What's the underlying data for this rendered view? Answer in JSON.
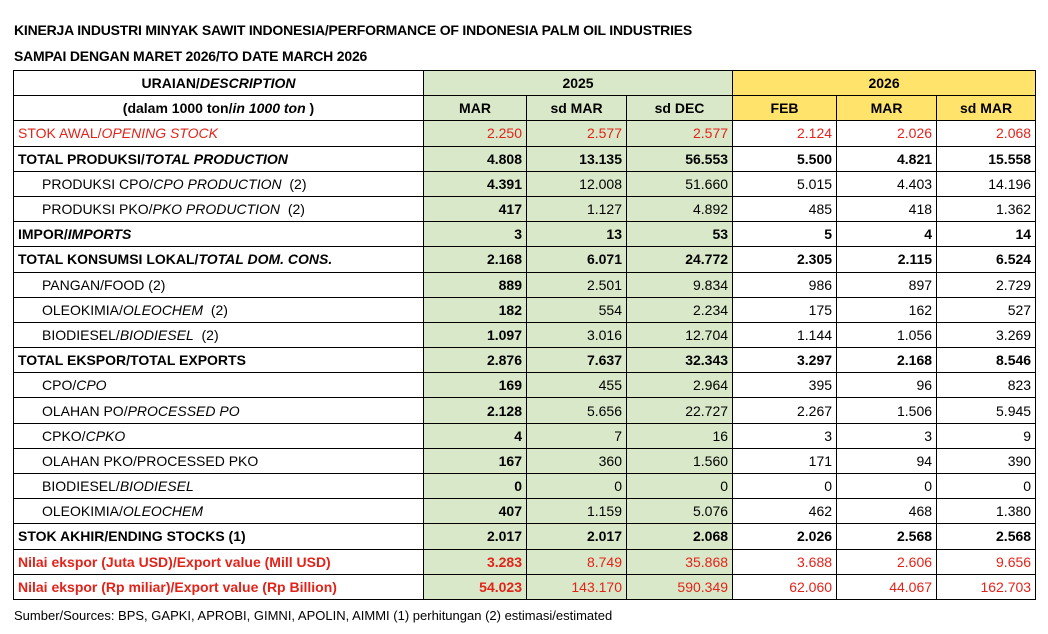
{
  "title_line1": "KINERJA INDUSTRI MINYAK SAWIT INDONESIA/PERFORMANCE OF INDONESIA PALM OIL INDUSTRIES",
  "title_line2": "SAMPAI DENGAN MARET 2026/TO DATE MARCH 2026",
  "header": {
    "desc_line1_main": "URAIAN/",
    "desc_line1_ital": "DESCRIPTION",
    "desc_line2_main": "(dalam 1000 ton/",
    "desc_line2_ital": "in 1000 ton",
    "desc_line2_end": " )",
    "year1": "2025",
    "year2": "2026",
    "cols": [
      "MAR",
      "sd MAR",
      "sd DEC",
      "FEB",
      "MAR",
      "sd MAR"
    ]
  },
  "colors": {
    "green_2025": "#d9e8c8",
    "yellow_2026": "#ffe36b",
    "red_text": "#e2231a"
  },
  "rows": [
    {
      "main": "STOK AWAL/",
      "ital": "OPENING STOCK",
      "suffix": "",
      "style": "red",
      "indent": false,
      "values": [
        "2.250",
        "2.577",
        "2.577",
        "2.124",
        "2.026",
        "2.068"
      ]
    },
    {
      "main": "TOTAL PRODUKSI/",
      "ital": "TOTAL PRODUCTION",
      "suffix": "",
      "style": "bold",
      "indent": false,
      "values": [
        "4.808",
        "13.135",
        "56.553",
        "5.500",
        "4.821",
        "15.558"
      ]
    },
    {
      "main": "PRODUKSI CPO/",
      "ital": "CPO PRODUCTION",
      "suffix": "  (2)",
      "style": "plain",
      "indent": true,
      "values": [
        "4.391",
        "12.008",
        "51.660",
        "5.015",
        "4.403",
        "14.196"
      ]
    },
    {
      "main": "PRODUKSI PKO/",
      "ital": "PKO PRODUCTION",
      "suffix": "  (2)",
      "style": "plain",
      "indent": true,
      "values": [
        "417",
        "1.127",
        "4.892",
        "485",
        "418",
        "1.362"
      ]
    },
    {
      "main": "IMPOR/",
      "ital": "IMPORTS",
      "suffix": "",
      "style": "bold",
      "indent": false,
      "values": [
        "3",
        "13",
        "53",
        "5",
        "4",
        "14"
      ]
    },
    {
      "main": "TOTAL KONSUMSI LOKAL/",
      "ital": "TOTAL DOM. CONS.",
      "suffix": "",
      "style": "bold",
      "indent": false,
      "values": [
        "2.168",
        "6.071",
        "24.772",
        "2.305",
        "2.115",
        "6.524"
      ]
    },
    {
      "main": "PANGAN/FOOD (2)",
      "ital": "",
      "suffix": "",
      "style": "plain",
      "indent": true,
      "values": [
        "889",
        "2.501",
        "9.834",
        "986",
        "897",
        "2.729"
      ]
    },
    {
      "main": "OLEOKIMIA/",
      "ital": "OLEOCHEM",
      "suffix": "  (2)",
      "style": "plain",
      "indent": true,
      "values": [
        "182",
        "554",
        "2.234",
        "175",
        "162",
        "527"
      ]
    },
    {
      "main": "BIODIESEL/",
      "ital": "BIODIESEL",
      "suffix": "  (2)",
      "style": "plain",
      "indent": true,
      "values": [
        "1.097",
        "3.016",
        "12.704",
        "1.144",
        "1.056",
        "3.269"
      ]
    },
    {
      "main": "TOTAL EKSPOR/TOTAL EXPORTS",
      "ital": "",
      "suffix": "",
      "style": "bold",
      "indent": false,
      "values": [
        "2.876",
        "7.637",
        "32.343",
        "3.297",
        "2.168",
        "8.546"
      ]
    },
    {
      "main": "CPO/",
      "ital": "CPO",
      "suffix": "",
      "style": "plain",
      "indent": true,
      "values": [
        "169",
        "455",
        "2.964",
        "395",
        "96",
        "823"
      ]
    },
    {
      "main": "OLAHAN PO/",
      "ital": "PROCESSED PO",
      "suffix": "",
      "style": "plain",
      "indent": true,
      "values": [
        "2.128",
        "5.656",
        "22.727",
        "2.267",
        "1.506",
        "5.945"
      ]
    },
    {
      "main": "CPKO/",
      "ital": "CPKO",
      "suffix": "",
      "style": "plain",
      "indent": true,
      "values": [
        "4",
        "7",
        "16",
        "3",
        "3",
        "9"
      ]
    },
    {
      "main": "OLAHAN PKO/PROCESSED PKO",
      "ital": "",
      "suffix": "",
      "style": "plain",
      "indent": true,
      "values": [
        "167",
        "360",
        "1.560",
        "171",
        "94",
        "390"
      ]
    },
    {
      "main": "BIODIESEL/",
      "ital": "BIODIESEL",
      "suffix": "",
      "style": "plain",
      "indent": true,
      "values": [
        "0",
        "0",
        "0",
        "0",
        "0",
        "0"
      ]
    },
    {
      "main": "OLEOKIMIA/",
      "ital": "OLEOCHEM",
      "suffix": "",
      "style": "plain",
      "indent": true,
      "values": [
        "407",
        "1.159",
        "5.076",
        "462",
        "468",
        "1.380"
      ]
    },
    {
      "main": "STOK AKHIR/ENDING STOCKS (1)",
      "ital": "",
      "suffix": "",
      "style": "bold",
      "indent": false,
      "values": [
        "2.017",
        "2.017",
        "2.068",
        "2.026",
        "2.568",
        "2.568"
      ]
    },
    {
      "main": "Nilai ekspor (Juta USD)/Export value (Mill USD)",
      "ital": "",
      "suffix": "",
      "style": "redb",
      "indent": false,
      "values": [
        "3.283",
        "8.749",
        "35.868",
        "3.688",
        "2.606",
        "9.656"
      ]
    },
    {
      "main": "Nilai ekspor (Rp miliar)/Export value (Rp Billion)",
      "ital": "",
      "suffix": "",
      "style": "redb",
      "indent": false,
      "values": [
        "54.023",
        "143.170",
        "590.349",
        "62.060",
        "44.067",
        "162.703"
      ]
    }
  ],
  "source": "Sumber/Sources: BPS, GAPKI, APROBI, GIMNI, APOLIN, AIMMI (1) perhitungan (2) estimasi/estimated"
}
